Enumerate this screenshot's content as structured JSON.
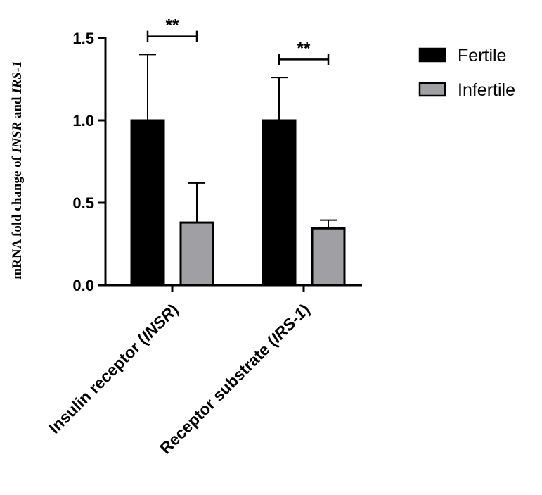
{
  "chart_data": {
    "type": "bar",
    "title": "",
    "ylabel_parts": [
      {
        "text": "mRNA fold change of ",
        "italic": false
      },
      {
        "text": "INSR",
        "italic": true
      },
      {
        "text": " and ",
        "italic": false
      },
      {
        "text": "IRS-1",
        "italic": true
      }
    ],
    "xlabel": "",
    "ylim": [
      0,
      1.5
    ],
    "yticks": [
      0.0,
      0.5,
      1.0,
      1.5
    ],
    "ytick_labels": [
      "0.0",
      "0.5",
      "1.0",
      "1.5"
    ],
    "categories": [
      {
        "parts": [
          {
            "text": "Insulin receptor (",
            "italic": false
          },
          {
            "text": "INSR",
            "italic": true
          },
          {
            "text": ")",
            "italic": false
          }
        ]
      },
      {
        "parts": [
          {
            "text": "Receptor substrate (",
            "italic": false
          },
          {
            "text": "IRS-1",
            "italic": true
          },
          {
            "text": ")",
            "italic": false
          }
        ]
      }
    ],
    "series": [
      {
        "name": "Fertile",
        "color": "#000000",
        "values": [
          1.0,
          1.0
        ],
        "errors": [
          0.4,
          0.26
        ]
      },
      {
        "name": "Infertile",
        "color": "#a0a0a4",
        "values": [
          0.38,
          0.345
        ],
        "errors": [
          0.24,
          0.05
        ]
      }
    ],
    "significance": [
      {
        "category_index": 0,
        "label": "**",
        "y": 1.51
      },
      {
        "category_index": 1,
        "label": "**",
        "y": 1.37
      }
    ],
    "legend_position": "top-right",
    "grid": false
  }
}
